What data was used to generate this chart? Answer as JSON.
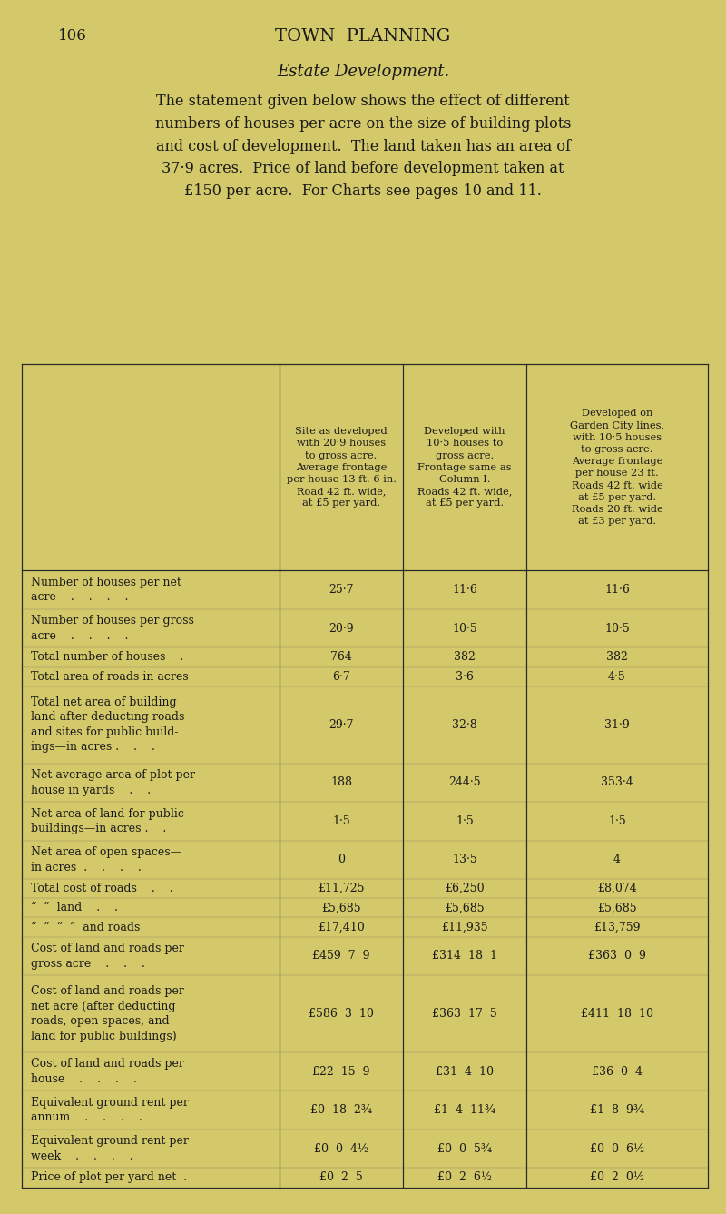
{
  "bg_color": "#d4c96a",
  "page_num": "106",
  "header": "TOWN  PLANNING",
  "title": "Estate Development.",
  "intro": "The statement given below shows the effect of different\nnumbers of houses per acre on the size of building plots\nand cost of development.  The land taken has an area of\n37·9 acres.  Price of land before development taken at\n£150 per acre.  For Charts see pages 10 and 11.",
  "col_headers": [
    "Site as developed\nwith 20·9 houses\nto gross acre.\nAverage frontage\nper house 13 ft. 6 in.\nRoad 42 ft. wide,\nat £5 per yard.",
    "Developed with\n10·5 houses to\ngross acre.\nFrontage same as\nColumn I.\nRoads 42 ft. wide,\nat £5 per yard.",
    "Developed on\nGarden City lines,\nwith 10·5 houses\nto gross acre.\nAverage frontage\nper house 23 ft.\nRoads 42 ft. wide\nat £5 per yard.\nRoads 20 ft. wide\nat £3 per yard."
  ],
  "rows": [
    {
      "label": "Number of houses per net\nacre    .    .    .    .",
      "values": [
        "25·7",
        "11·6",
        "11·6"
      ]
    },
    {
      "label": "Number of houses per gross\nacre    .    .    .    .",
      "values": [
        "20·9",
        "10·5",
        "10·5"
      ]
    },
    {
      "label": "Total number of houses    .",
      "values": [
        "764",
        "382",
        "382"
      ]
    },
    {
      "label": "Total area of roads in acres",
      "values": [
        "6·7",
        "3·6",
        "4·5"
      ]
    },
    {
      "label": "Total net area of building\nland after deducting roads\nand sites for public build-\nings—in acres .    .    .",
      "values": [
        "29·7",
        "32·8",
        "31·9"
      ]
    },
    {
      "label": "Net average area of plot per\nhouse in yards    .    .",
      "values": [
        "188",
        "244·5",
        "353·4"
      ]
    },
    {
      "label": "Net area of land for public\nbuildings—in acres .    .",
      "values": [
        "1·5",
        "1·5",
        "1·5"
      ]
    },
    {
      "label": "Net area of open spaces—\nin acres  .    .    .    .",
      "values": [
        "0",
        "13·5",
        "4"
      ]
    },
    {
      "label": "Total cost of roads    .    .",
      "values": [
        "£11,725",
        "£6,250",
        "£8,074"
      ]
    },
    {
      "label": "“  ”  land    .    .",
      "values": [
        "£5,685",
        "£5,685",
        "£5,685"
      ]
    },
    {
      "label": "“  ”  “  ”  and roads",
      "values": [
        "£17,410",
        "£11,935",
        "£13,759"
      ]
    },
    {
      "label": "Cost of land and roads per\ngross acre    .    .    .",
      "values": [
        "£459  7  9",
        "£314  18  1",
        "£363  0  9"
      ]
    },
    {
      "label": "Cost of land and roads per\nnet acre (after deducting\nroads, open spaces, and\nland for public buildings)",
      "values": [
        "£586  3  10",
        "£363  17  5",
        "£411  18  10"
      ]
    },
    {
      "label": "Cost of land and roads per\nhouse    .    .    .    .",
      "values": [
        "£22  15  9",
        "£31  4  10",
        "£36  0  4"
      ]
    },
    {
      "label": "Equivalent ground rent per\nannum    .    .    .    .",
      "values": [
        "£0  18  2¾",
        "£1  4  11¾",
        "£1  8  9¾"
      ]
    },
    {
      "label": "Equivalent ground rent per\nweek    .    .    .    .",
      "values": [
        "£0  0  4½",
        "£0  0  5¾",
        "£0  0  6½"
      ]
    },
    {
      "label": "Price of plot per yard net  .",
      "values": [
        "£0  2  5",
        "£0  2  6½",
        "£0  2  0½"
      ]
    }
  ]
}
